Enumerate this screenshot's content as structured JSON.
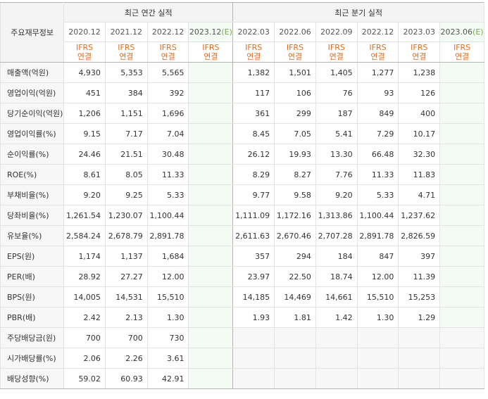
{
  "header": {
    "corner_label": "주요재무정보",
    "annual_group": "최근 연간 실적",
    "quarterly_group": "최근 분기 실적",
    "annual_periods": [
      "2020.12",
      "2021.12",
      "2022.12",
      "2023.12"
    ],
    "quarterly_periods": [
      "2022.03",
      "2022.06",
      "2022.09",
      "2022.12",
      "2023.03",
      "2023.06"
    ],
    "estimate_marker": "(E)",
    "ifrs_line1": "IFRS",
    "ifrs_line2": "연결"
  },
  "rows": [
    {
      "label": "매출액(억원)",
      "annual": [
        "4,930",
        "5,353",
        "5,565",
        ""
      ],
      "quarterly": [
        "1,382",
        "1,501",
        "1,405",
        "1,277",
        "1,238",
        ""
      ]
    },
    {
      "label": "영업이익(억원)",
      "annual": [
        "451",
        "384",
        "392",
        ""
      ],
      "quarterly": [
        "117",
        "106",
        "76",
        "93",
        "126",
        ""
      ]
    },
    {
      "label": "당기순이익(억원)",
      "annual": [
        "1,206",
        "1,151",
        "1,696",
        ""
      ],
      "quarterly": [
        "361",
        "299",
        "187",
        "849",
        "400",
        ""
      ]
    },
    {
      "label": "영업이익률(%)",
      "annual": [
        "9.15",
        "7.17",
        "7.04",
        ""
      ],
      "quarterly": [
        "8.45",
        "7.05",
        "5.41",
        "7.29",
        "10.17",
        ""
      ]
    },
    {
      "label": "순이익률(%)",
      "annual": [
        "24.46",
        "21.51",
        "30.48",
        ""
      ],
      "quarterly": [
        "26.12",
        "19.93",
        "13.30",
        "66.48",
        "32.30",
        ""
      ]
    },
    {
      "label": "ROE(%)",
      "annual": [
        "8.61",
        "8.05",
        "11.33",
        ""
      ],
      "quarterly": [
        "8.29",
        "8.27",
        "7.76",
        "11.33",
        "11.83",
        ""
      ]
    },
    {
      "label": "부채비율(%)",
      "annual": [
        "9.20",
        "9.25",
        "5.33",
        ""
      ],
      "quarterly": [
        "9.77",
        "9.58",
        "9.20",
        "5.33",
        "4.71",
        ""
      ]
    },
    {
      "label": "당좌비율(%)",
      "annual": [
        "1,261.54",
        "1,230.07",
        "1,100.44",
        ""
      ],
      "quarterly": [
        "1,111.09",
        "1,172.16",
        "1,313.86",
        "1,100.44",
        "1,237.62",
        ""
      ]
    },
    {
      "label": "유보율(%)",
      "annual": [
        "2,584.24",
        "2,678.79",
        "2,891.78",
        ""
      ],
      "quarterly": [
        "2,611.63",
        "2,670.46",
        "2,707.28",
        "2,891.78",
        "2,826.59",
        ""
      ]
    },
    {
      "label": "EPS(원)",
      "annual": [
        "1,174",
        "1,137",
        "1,684",
        ""
      ],
      "quarterly": [
        "357",
        "294",
        "184",
        "847",
        "397",
        ""
      ]
    },
    {
      "label": "PER(배)",
      "annual": [
        "28.92",
        "27.27",
        "12.00",
        ""
      ],
      "quarterly": [
        "23.97",
        "22.50",
        "18.74",
        "12.00",
        "11.39",
        ""
      ]
    },
    {
      "label": "BPS(원)",
      "annual": [
        "14,005",
        "14,531",
        "15,510",
        ""
      ],
      "quarterly": [
        "14,185",
        "14,469",
        "14,661",
        "15,510",
        "15,253",
        ""
      ]
    },
    {
      "label": "PBR(배)",
      "annual": [
        "2.42",
        "2.13",
        "1.30",
        ""
      ],
      "quarterly": [
        "1.93",
        "1.81",
        "1.42",
        "1.30",
        "1.29",
        ""
      ]
    },
    {
      "label": "주당배당금(원)",
      "annual": [
        "700",
        "700",
        "730",
        ""
      ],
      "quarterly": []
    },
    {
      "label": "시가배당률(%)",
      "annual": [
        "2.06",
        "2.26",
        "3.61",
        ""
      ],
      "quarterly": []
    },
    {
      "label": "배당성향(%)",
      "annual": [
        "59.02",
        "60.93",
        "42.91",
        ""
      ],
      "quarterly": []
    }
  ]
}
